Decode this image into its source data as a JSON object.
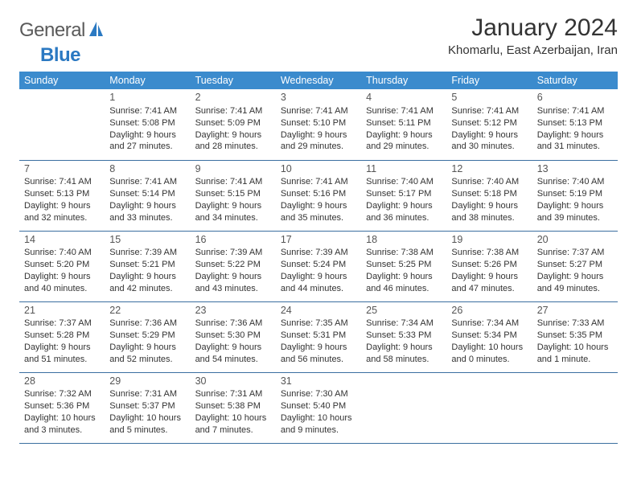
{
  "logo": {
    "general": "General",
    "blue": "Blue"
  },
  "header": {
    "month": "January 2024",
    "location": "Khomarlu, East Azerbaijan, Iran"
  },
  "colors": {
    "header_bg": "#3b8bcd",
    "row_border": "#3b6fa0",
    "logo_blue": "#2b79c2",
    "text": "#333333"
  },
  "weekdays": [
    "Sunday",
    "Monday",
    "Tuesday",
    "Wednesday",
    "Thursday",
    "Friday",
    "Saturday"
  ],
  "weeks": [
    [
      null,
      {
        "n": "1",
        "sr": "7:41 AM",
        "ss": "5:08 PM",
        "dl": "9 hours and 27 minutes."
      },
      {
        "n": "2",
        "sr": "7:41 AM",
        "ss": "5:09 PM",
        "dl": "9 hours and 28 minutes."
      },
      {
        "n": "3",
        "sr": "7:41 AM",
        "ss": "5:10 PM",
        "dl": "9 hours and 29 minutes."
      },
      {
        "n": "4",
        "sr": "7:41 AM",
        "ss": "5:11 PM",
        "dl": "9 hours and 29 minutes."
      },
      {
        "n": "5",
        "sr": "7:41 AM",
        "ss": "5:12 PM",
        "dl": "9 hours and 30 minutes."
      },
      {
        "n": "6",
        "sr": "7:41 AM",
        "ss": "5:13 PM",
        "dl": "9 hours and 31 minutes."
      }
    ],
    [
      {
        "n": "7",
        "sr": "7:41 AM",
        "ss": "5:13 PM",
        "dl": "9 hours and 32 minutes."
      },
      {
        "n": "8",
        "sr": "7:41 AM",
        "ss": "5:14 PM",
        "dl": "9 hours and 33 minutes."
      },
      {
        "n": "9",
        "sr": "7:41 AM",
        "ss": "5:15 PM",
        "dl": "9 hours and 34 minutes."
      },
      {
        "n": "10",
        "sr": "7:41 AM",
        "ss": "5:16 PM",
        "dl": "9 hours and 35 minutes."
      },
      {
        "n": "11",
        "sr": "7:40 AM",
        "ss": "5:17 PM",
        "dl": "9 hours and 36 minutes."
      },
      {
        "n": "12",
        "sr": "7:40 AM",
        "ss": "5:18 PM",
        "dl": "9 hours and 38 minutes."
      },
      {
        "n": "13",
        "sr": "7:40 AM",
        "ss": "5:19 PM",
        "dl": "9 hours and 39 minutes."
      }
    ],
    [
      {
        "n": "14",
        "sr": "7:40 AM",
        "ss": "5:20 PM",
        "dl": "9 hours and 40 minutes."
      },
      {
        "n": "15",
        "sr": "7:39 AM",
        "ss": "5:21 PM",
        "dl": "9 hours and 42 minutes."
      },
      {
        "n": "16",
        "sr": "7:39 AM",
        "ss": "5:22 PM",
        "dl": "9 hours and 43 minutes."
      },
      {
        "n": "17",
        "sr": "7:39 AM",
        "ss": "5:24 PM",
        "dl": "9 hours and 44 minutes."
      },
      {
        "n": "18",
        "sr": "7:38 AM",
        "ss": "5:25 PM",
        "dl": "9 hours and 46 minutes."
      },
      {
        "n": "19",
        "sr": "7:38 AM",
        "ss": "5:26 PM",
        "dl": "9 hours and 47 minutes."
      },
      {
        "n": "20",
        "sr": "7:37 AM",
        "ss": "5:27 PM",
        "dl": "9 hours and 49 minutes."
      }
    ],
    [
      {
        "n": "21",
        "sr": "7:37 AM",
        "ss": "5:28 PM",
        "dl": "9 hours and 51 minutes."
      },
      {
        "n": "22",
        "sr": "7:36 AM",
        "ss": "5:29 PM",
        "dl": "9 hours and 52 minutes."
      },
      {
        "n": "23",
        "sr": "7:36 AM",
        "ss": "5:30 PM",
        "dl": "9 hours and 54 minutes."
      },
      {
        "n": "24",
        "sr": "7:35 AM",
        "ss": "5:31 PM",
        "dl": "9 hours and 56 minutes."
      },
      {
        "n": "25",
        "sr": "7:34 AM",
        "ss": "5:33 PM",
        "dl": "9 hours and 58 minutes."
      },
      {
        "n": "26",
        "sr": "7:34 AM",
        "ss": "5:34 PM",
        "dl": "10 hours and 0 minutes."
      },
      {
        "n": "27",
        "sr": "7:33 AM",
        "ss": "5:35 PM",
        "dl": "10 hours and 1 minute."
      }
    ],
    [
      {
        "n": "28",
        "sr": "7:32 AM",
        "ss": "5:36 PM",
        "dl": "10 hours and 3 minutes."
      },
      {
        "n": "29",
        "sr": "7:31 AM",
        "ss": "5:37 PM",
        "dl": "10 hours and 5 minutes."
      },
      {
        "n": "30",
        "sr": "7:31 AM",
        "ss": "5:38 PM",
        "dl": "10 hours and 7 minutes."
      },
      {
        "n": "31",
        "sr": "7:30 AM",
        "ss": "5:40 PM",
        "dl": "10 hours and 9 minutes."
      },
      null,
      null,
      null
    ]
  ],
  "labels": {
    "sunrise": "Sunrise: ",
    "sunset": "Sunset: ",
    "daylight": "Daylight: "
  }
}
